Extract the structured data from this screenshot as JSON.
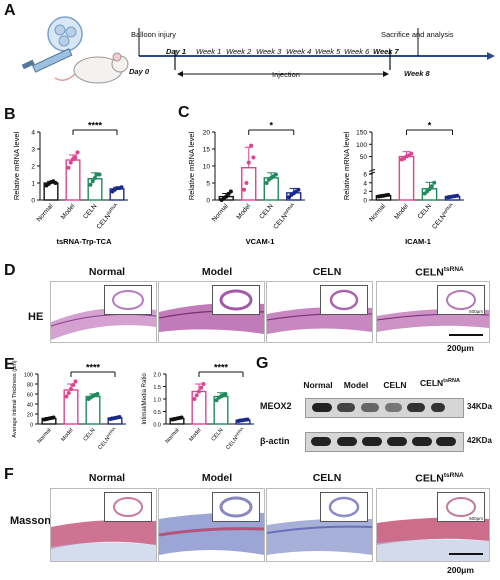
{
  "panel_letters": {
    "A": "A",
    "B": "B",
    "C": "C",
    "D": "D",
    "E": "E",
    "F": "F",
    "G": "G"
  },
  "timeline": {
    "balloon": "Balloon injury",
    "sacrifice": "Sacrifice and analysis",
    "day0": "Day 0",
    "day1": "Day 1",
    "weeks": [
      "Week 1",
      "Week 2",
      "Week 3",
      "Week 4",
      "Week 5",
      "Week 6",
      "Week 7"
    ],
    "week8": "Week 8",
    "injection": "Injection"
  },
  "groups": [
    "Normal",
    "Model",
    "CELN",
    "CELN"
  ],
  "ts_sup": "tsRNA",
  "colors": {
    "normal": "#111111",
    "model": "#e0438e",
    "celn": "#1f8a5e",
    "celntsrna": "#1a2a8c"
  },
  "chart_data": [
    {
      "type": "bar",
      "categories": [
        "Normal",
        "Model",
        "CELN",
        "CELN tsRNA"
      ],
      "values": [
        1.0,
        2.35,
        1.25,
        0.65
      ],
      "errors": [
        0.1,
        0.3,
        0.35,
        0.1
      ],
      "points": [
        [
          0.85,
          0.95,
          1.05,
          1.1,
          1.0
        ],
        [
          1.9,
          2.2,
          2.4,
          2.5,
          2.8
        ],
        [
          0.9,
          1.1,
          1.3,
          1.5,
          1.5
        ],
        [
          0.5,
          0.6,
          0.7,
          0.7,
          0.75
        ]
      ],
      "ylabel": "Relative mRNA level",
      "xlabel": "tsRNA-Trp-TCA",
      "ylim": [
        0,
        4
      ],
      "yticks": [
        "0",
        "1",
        "2",
        "3",
        "4"
      ],
      "significance": "****"
    },
    {
      "type": "bar",
      "categories": [
        "Normal",
        "Model",
        "CELN",
        "CELN tsRNA"
      ],
      "values": [
        1.0,
        9.5,
        6.5,
        2.1
      ],
      "errors": [
        0.9,
        6.0,
        1.5,
        1.3
      ],
      "points": [
        [
          0.0,
          0.5,
          1.0,
          1.8,
          2.5
        ],
        [
          3.0,
          5.0,
          11.0,
          16.0,
          12.5
        ],
        [
          5.0,
          6.0,
          6.5,
          7.0,
          7.5
        ],
        [
          0.8,
          1.5,
          2.0,
          2.5,
          3.0
        ]
      ],
      "ylabel": "Relative mRNA level",
      "xlabel": "VCAM-1",
      "ylim": [
        0,
        20
      ],
      "yticks": [
        "0",
        "5",
        "10",
        "15",
        "20"
      ],
      "significance": "*"
    },
    {
      "type": "bar",
      "categories": [
        "Normal",
        "Model",
        "CELN",
        "CELN tsRNA"
      ],
      "values": [
        1.0,
        50,
        2.6,
        0.8
      ],
      "errors": [
        0.2,
        20,
        1.5,
        0.2
      ],
      "points": [
        [
          0.8,
          0.9,
          1.0,
          1.1,
          1.2
        ],
        [
          38,
          42,
          50,
          55,
          62
        ],
        [
          1.5,
          2.0,
          2.5,
          3.2,
          4.0
        ],
        [
          0.6,
          0.7,
          0.8,
          0.9,
          1.0
        ]
      ],
      "ylabel": "Relative mRNA level",
      "xlabel": "ICAM-1",
      "yticks": [
        "0",
        "2",
        "4",
        "6",
        "50",
        "100",
        "150"
      ],
      "significance": "*"
    },
    {
      "type": "bar",
      "categories": [
        "Normal",
        "Model",
        "CELN",
        "CELN tsRNA"
      ],
      "values": [
        11,
        68,
        55,
        12
      ],
      "errors": [
        2,
        12,
        5,
        2
      ],
      "points": [
        [
          9,
          10,
          11,
          12,
          13
        ],
        [
          55,
          62,
          70,
          78,
          85
        ],
        [
          50,
          53,
          56,
          58,
          60
        ],
        [
          10,
          11,
          12,
          13,
          14
        ]
      ],
      "ylabel": "Average Intimal Thickness (μm)",
      "ylim": [
        0,
        100
      ],
      "yticks": [
        "0",
        "20",
        "40",
        "60",
        "80",
        "100"
      ],
      "significance": "****"
    },
    {
      "type": "bar",
      "categories": [
        "Normal",
        "Model",
        "CELN",
        "CELN tsRNA"
      ],
      "values": [
        0.22,
        1.3,
        1.1,
        0.15
      ],
      "errors": [
        0.03,
        0.3,
        0.15,
        0.04
      ],
      "points": [
        [
          0.18,
          0.2,
          0.22,
          0.24,
          0.26
        ],
        [
          1.0,
          1.15,
          1.3,
          1.45,
          1.6
        ],
        [
          0.95,
          1.05,
          1.1,
          1.15,
          1.2
        ],
        [
          0.12,
          0.14,
          0.15,
          0.17,
          0.18
        ]
      ],
      "ylabel": "Intimal/Media Ratio",
      "ylim": [
        0,
        2.0
      ],
      "yticks": [
        "0.0",
        "0.5",
        "1.0",
        "1.5",
        "2.0"
      ],
      "significance": "****"
    }
  ],
  "histology": {
    "he": "HE",
    "masson": "Masson",
    "scale": "200μm",
    "inset_scale": "500μm"
  },
  "western": {
    "lanes": [
      "Normal",
      "Model",
      "CELN",
      "CELN"
    ],
    "meox2": "MEOX2",
    "actin": "β-actin",
    "kda1": "34KDa",
    "kda2": "42KDa"
  }
}
